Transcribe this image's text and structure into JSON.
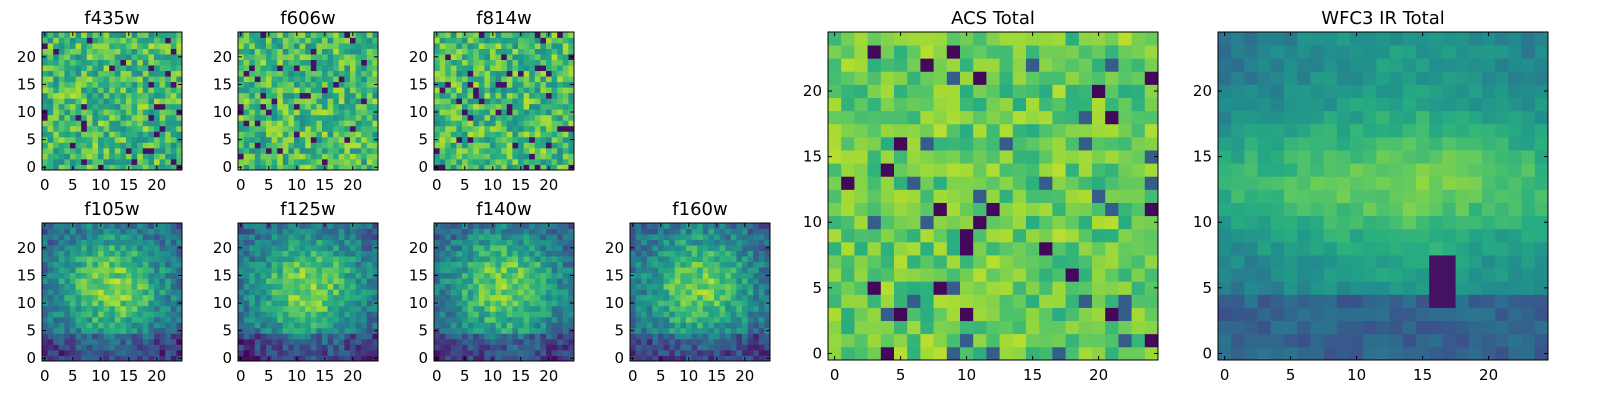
{
  "chart_data": [
    {
      "type": "heatmap",
      "title": "f435w",
      "xticks": [
        "0",
        "5",
        "10",
        "15",
        "20"
      ],
      "yticks": [
        "0",
        "5",
        "10",
        "15",
        "20"
      ],
      "xlim": [
        -0.5,
        24.5
      ],
      "ylim": [
        -0.5,
        24.5
      ],
      "grid_size": 25,
      "colormap": "viridis",
      "pattern": "noise"
    },
    {
      "type": "heatmap",
      "title": "f606w",
      "xticks": [
        "0",
        "5",
        "10",
        "15",
        "20"
      ],
      "yticks": [
        "0",
        "5",
        "10",
        "15",
        "20"
      ],
      "xlim": [
        -0.5,
        24.5
      ],
      "ylim": [
        -0.5,
        24.5
      ],
      "grid_size": 25,
      "colormap": "viridis",
      "pattern": "noise"
    },
    {
      "type": "heatmap",
      "title": "f814w",
      "xticks": [
        "0",
        "5",
        "10",
        "15",
        "20"
      ],
      "yticks": [
        "0",
        "5",
        "10",
        "15",
        "20"
      ],
      "xlim": [
        -0.5,
        24.5
      ],
      "ylim": [
        -0.5,
        24.5
      ],
      "grid_size": 25,
      "colormap": "viridis",
      "pattern": "noise"
    },
    {
      "type": "heatmap",
      "title": "f105w",
      "xticks": [
        "0",
        "5",
        "10",
        "15",
        "20"
      ],
      "yticks": [
        "0",
        "5",
        "10",
        "15",
        "20"
      ],
      "xlim": [
        -0.5,
        24.5
      ],
      "ylim": [
        -0.5,
        24.5
      ],
      "grid_size": 25,
      "colormap": "viridis",
      "pattern": "blob"
    },
    {
      "type": "heatmap",
      "title": "f125w",
      "xticks": [
        "0",
        "5",
        "10",
        "15",
        "20"
      ],
      "yticks": [
        "0",
        "5",
        "10",
        "15",
        "20"
      ],
      "xlim": [
        -0.5,
        24.5
      ],
      "ylim": [
        -0.5,
        24.5
      ],
      "grid_size": 25,
      "colormap": "viridis",
      "pattern": "blob"
    },
    {
      "type": "heatmap",
      "title": "f140w",
      "xticks": [
        "0",
        "5",
        "10",
        "15",
        "20"
      ],
      "yticks": [
        "0",
        "5",
        "10",
        "15",
        "20"
      ],
      "xlim": [
        -0.5,
        24.5
      ],
      "ylim": [
        -0.5,
        24.5
      ],
      "grid_size": 25,
      "colormap": "viridis",
      "pattern": "blob"
    },
    {
      "type": "heatmap",
      "title": "f160w",
      "xticks": [
        "0",
        "5",
        "10",
        "15",
        "20"
      ],
      "yticks": [
        "0",
        "5",
        "10",
        "15",
        "20"
      ],
      "xlim": [
        -0.5,
        24.5
      ],
      "ylim": [
        -0.5,
        24.5
      ],
      "grid_size": 25,
      "colormap": "viridis",
      "pattern": "blob"
    },
    {
      "type": "heatmap",
      "title": "ACS Total",
      "xticks": [
        "0",
        "5",
        "10",
        "15",
        "20"
      ],
      "yticks": [
        "0",
        "5",
        "10",
        "15",
        "20"
      ],
      "xlim": [
        -0.5,
        24.5
      ],
      "ylim": [
        -0.5,
        24.5
      ],
      "grid_size": 25,
      "colormap": "viridis",
      "pattern": "acs"
    },
    {
      "type": "heatmap",
      "title": "WFC3 IR Total",
      "xticks": [
        "0",
        "5",
        "10",
        "15",
        "20"
      ],
      "yticks": [
        "0",
        "5",
        "10",
        "15",
        "20"
      ],
      "xlim": [
        -0.5,
        24.5
      ],
      "ylim": [
        -0.5,
        24.5
      ],
      "grid_size": 25,
      "colormap": "viridis",
      "pattern": "ir"
    }
  ]
}
